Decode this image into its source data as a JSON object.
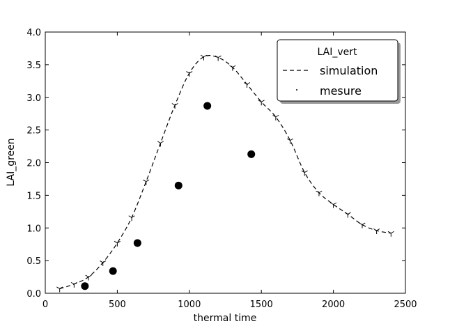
{
  "chart_data": {
    "type": "line",
    "title": "",
    "xlabel": "thermal time",
    "ylabel": "LAI_green",
    "xlim": [
      0,
      2500
    ],
    "ylim": [
      0,
      4.0
    ],
    "xticks": [
      0,
      500,
      1000,
      1500,
      2000,
      2500
    ],
    "xtick_labels": [
      "0",
      "500",
      "1000",
      "1500",
      "2000",
      "2500"
    ],
    "yticks": [
      0.0,
      0.5,
      1.0,
      1.5,
      2.0,
      2.5,
      3.0,
      3.5,
      4.0
    ],
    "ytick_labels": [
      "0.0",
      "0.5",
      "1.0",
      "1.5",
      "2.0",
      "2.5",
      "3.0",
      "3.5",
      "4.0"
    ],
    "grid": false,
    "legend": {
      "title": "LAI_vert",
      "placement": "top-right",
      "entries": [
        "simulation",
        "mesure"
      ]
    },
    "series": [
      {
        "name": "simulation",
        "style": "dashed-line-with-tri-markers",
        "color": "#000000",
        "x": [
          100,
          200,
          300,
          400,
          500,
          600,
          700,
          800,
          900,
          1000,
          1100,
          1200,
          1300,
          1400,
          1500,
          1600,
          1700,
          1800,
          1900,
          2000,
          2100,
          2200,
          2300,
          2400
        ],
        "y": [
          0.07,
          0.14,
          0.25,
          0.47,
          0.77,
          1.16,
          1.71,
          2.3,
          2.88,
          3.37,
          3.62,
          3.61,
          3.46,
          3.2,
          2.93,
          2.7,
          2.34,
          1.85,
          1.54,
          1.36,
          1.21,
          1.05,
          0.96,
          0.92
        ]
      },
      {
        "name": "mesure",
        "style": "points",
        "color": "#000000",
        "x": [
          275,
          470,
          640,
          925,
          1125,
          1430
        ],
        "y": [
          0.11,
          0.34,
          0.77,
          1.65,
          2.87,
          2.13
        ]
      }
    ]
  }
}
